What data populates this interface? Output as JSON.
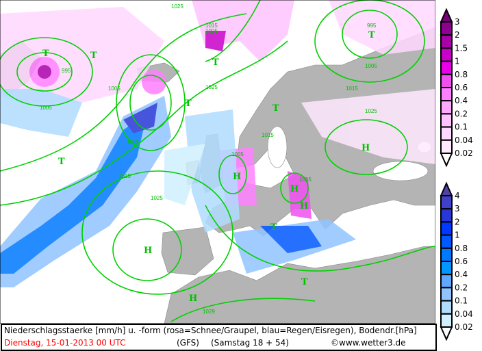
{
  "footer": {
    "description": "Niederschlagsstaerke [mm/h] u. -form (rosa=Schnee/Graupel, blau=Regen/Eisregen), Bodendr.[hPa]",
    "date": "Dienstag, 15-01-2013  00 UTC",
    "model": "(GFS)",
    "run": "(Samstag 18 + 54)",
    "copyright": "©www.wetter3.de"
  },
  "colors": {
    "land": "#b4b4b4",
    "sea": "#ffffff",
    "isobar": "#00d000",
    "date_text": "#ff0000"
  },
  "legend_snow": {
    "labels": [
      "3",
      "2",
      "1.5",
      "1",
      "0.8",
      "0.6",
      "0.4",
      "0.2",
      "0.1",
      "0.04",
      "0.02"
    ],
    "colors": [
      "#7a007a",
      "#900090",
      "#aa00aa",
      "#c800c8",
      "#e800e8",
      "#f050f0",
      "#ff80ff",
      "#ffa8ff",
      "#ffc4ff",
      "#ffd8ff",
      "#ffeaff",
      "#ffffff"
    ]
  },
  "legend_rain": {
    "labels": [
      "4",
      "3",
      "2",
      "1",
      "0.8",
      "0.6",
      "0.4",
      "0.2",
      "0.1",
      "0.04",
      "0.02"
    ],
    "colors": [
      "#5040a8",
      "#4040c8",
      "#2838d8",
      "#0038ff",
      "#0058ff",
      "#0078ff",
      "#0098ff",
      "#60a8ff",
      "#90c4ff",
      "#b0dcff",
      "#d0f0ff",
      "#ffffff"
    ]
  },
  "map_labels": {
    "isobars": [
      "995",
      "1005",
      "1005",
      "1015",
      "1025",
      "1015",
      "1005",
      "995",
      "1005",
      "1015",
      "1025",
      "1005",
      "1015",
      "1025",
      "1015",
      "1005",
      "1025",
      "1029"
    ],
    "centers": [
      "T",
      "T",
      "T",
      "T",
      "T",
      "H",
      "H",
      "H",
      "T",
      "T",
      "H",
      "H",
      "T",
      "T",
      "H"
    ]
  }
}
